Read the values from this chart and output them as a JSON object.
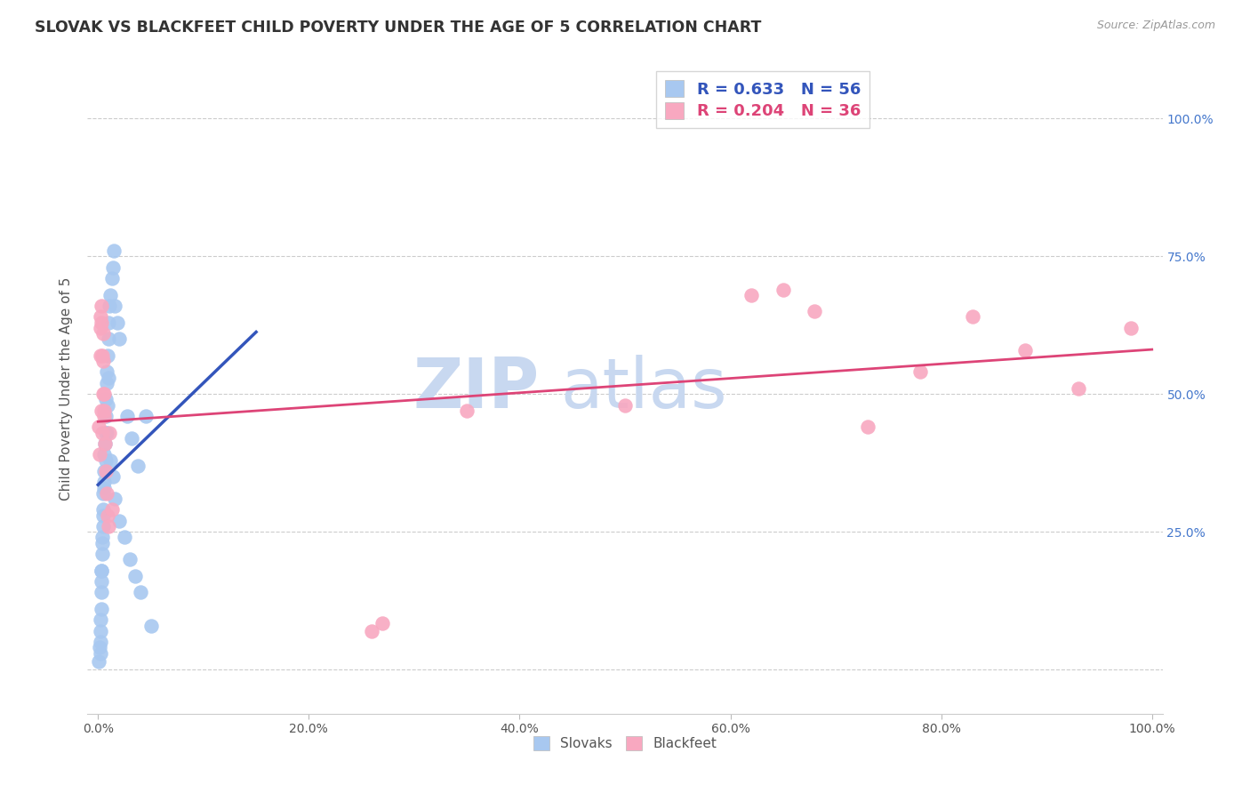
{
  "title": "SLOVAK VS BLACKFEET CHILD POVERTY UNDER THE AGE OF 5 CORRELATION CHART",
  "source": "Source: ZipAtlas.com",
  "ylabel": "Child Poverty Under the Age of 5",
  "r_blue": 0.633,
  "n_blue": 56,
  "r_pink": 0.204,
  "n_pink": 36,
  "blue_scatter_color": "#a8c8f0",
  "pink_scatter_color": "#f8a8c0",
  "blue_line_color": "#3355bb",
  "pink_line_color": "#dd4477",
  "blue_line_solid": [
    [
      0.0,
      5.0
    ],
    [
      -5.0,
      95.0
    ]
  ],
  "blue_line_dashed": [
    [
      5.0,
      12.0
    ],
    [
      95.0,
      120.0
    ]
  ],
  "pink_line": [
    [
      0.0,
      100.0
    ],
    [
      44.0,
      65.0
    ]
  ],
  "right_tick_color": "#4477cc",
  "watermark_color": "#c8d8f0",
  "grid_color": "#cccccc",
  "title_fontsize": 12.5,
  "source_fontsize": 9,
  "legend_fontsize": 13,
  "tick_fontsize": 10,
  "ylabel_fontsize": 11,
  "slovak_x": [
    0.1,
    0.15,
    0.2,
    0.2,
    0.25,
    0.25,
    0.3,
    0.3,
    0.35,
    0.35,
    0.4,
    0.4,
    0.45,
    0.5,
    0.5,
    0.55,
    0.6,
    0.6,
    0.65,
    0.7,
    0.7,
    0.75,
    0.8,
    0.85,
    0.9,
    0.95,
    1.0,
    1.1,
    1.2,
    1.3,
    1.4,
    1.5,
    1.6,
    1.8,
    2.0,
    0.3,
    0.4,
    0.5,
    0.6,
    0.7,
    0.8,
    0.9,
    1.0,
    1.2,
    1.4,
    1.6,
    2.0,
    2.5,
    3.0,
    3.5,
    4.0,
    2.8,
    3.2,
    4.5,
    5.0,
    3.8
  ],
  "slovak_y": [
    1.5,
    4.0,
    3.0,
    7.0,
    5.0,
    9.0,
    11.0,
    16.0,
    14.0,
    18.0,
    21.0,
    24.0,
    26.0,
    29.0,
    32.0,
    34.0,
    36.0,
    39.0,
    41.0,
    43.0,
    46.0,
    49.0,
    52.0,
    54.0,
    57.0,
    60.0,
    63.0,
    66.0,
    68.0,
    71.0,
    73.0,
    76.0,
    66.0,
    63.0,
    60.0,
    18.0,
    23.0,
    28.0,
    33.0,
    38.0,
    43.0,
    48.0,
    53.0,
    38.0,
    35.0,
    31.0,
    27.0,
    24.0,
    20.0,
    17.0,
    14.0,
    46.0,
    42.0,
    46.0,
    8.0,
    37.0
  ],
  "blackfeet_x": [
    0.1,
    0.15,
    0.2,
    0.25,
    0.3,
    0.35,
    0.4,
    0.45,
    0.5,
    0.55,
    0.6,
    0.65,
    0.7,
    0.8,
    0.9,
    1.0,
    0.2,
    0.3,
    0.4,
    0.5,
    0.6,
    1.1,
    1.3,
    35.0,
    50.0,
    65.0,
    68.0,
    73.0,
    78.0,
    83.0,
    88.0,
    93.0,
    98.0,
    62.0,
    26.0,
    27.0
  ],
  "blackfeet_y": [
    44.0,
    39.0,
    57.0,
    62.0,
    47.0,
    63.0,
    43.0,
    56.0,
    61.0,
    50.0,
    46.0,
    41.0,
    36.0,
    32.0,
    28.0,
    26.0,
    64.0,
    66.0,
    57.0,
    50.0,
    47.0,
    43.0,
    29.0,
    47.0,
    48.0,
    69.0,
    65.0,
    44.0,
    54.0,
    64.0,
    58.0,
    51.0,
    62.0,
    68.0,
    7.0,
    8.5
  ]
}
